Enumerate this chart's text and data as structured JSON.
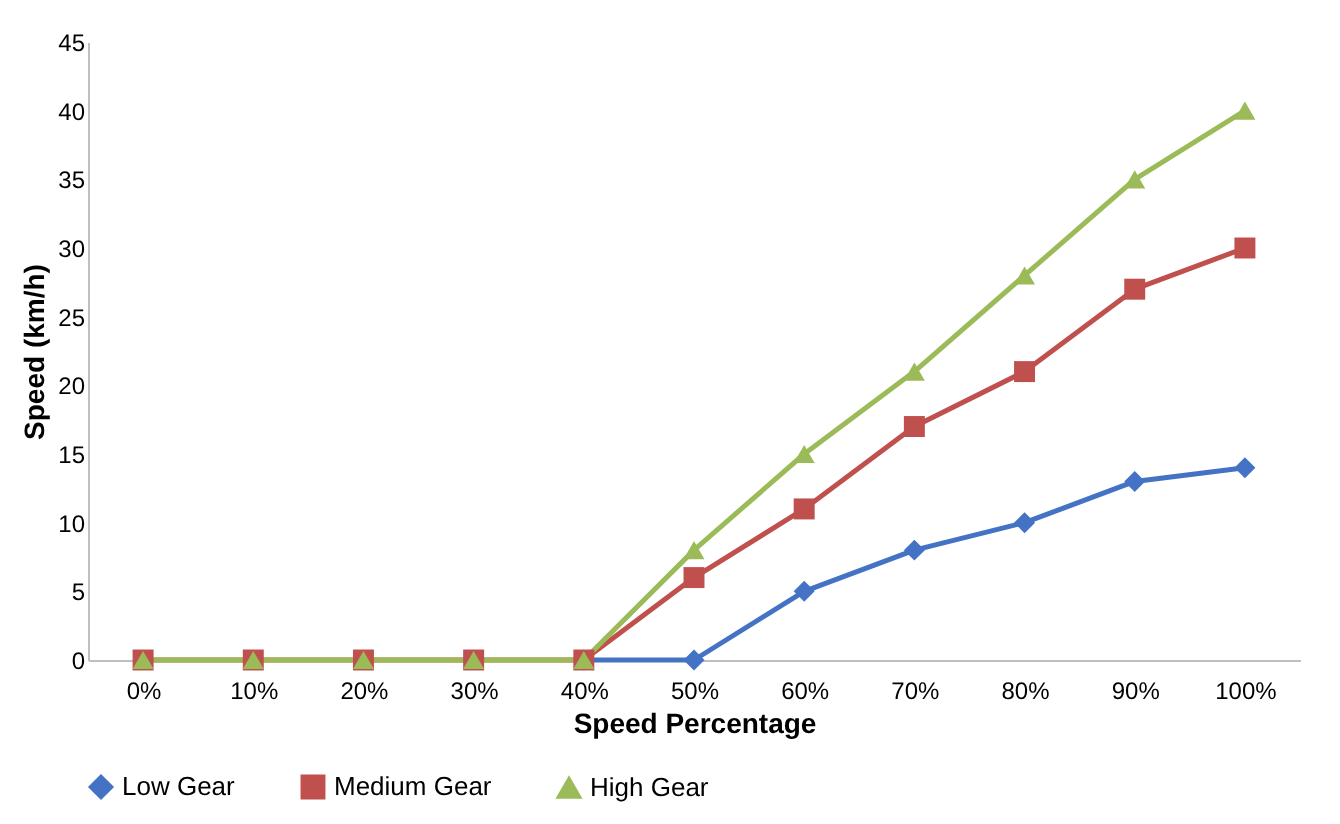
{
  "chart_data": {
    "type": "line",
    "xlabel": "Speed Percentage",
    "ylabel": "Speed (km/h)",
    "categories": [
      "0%",
      "10%",
      "20%",
      "30%",
      "40%",
      "50%",
      "60%",
      "70%",
      "80%",
      "90%",
      "100%"
    ],
    "series": [
      {
        "name": "Low Gear",
        "color": "#4472c4",
        "marker": "diamond",
        "values": [
          null,
          null,
          null,
          null,
          0,
          0,
          5,
          8,
          10,
          13,
          14
        ]
      },
      {
        "name": "Medium Gear",
        "color": "#c0504d",
        "marker": "square",
        "values": [
          0,
          0,
          0,
          0,
          0,
          6,
          11,
          17,
          21,
          27,
          30
        ]
      },
      {
        "name": "High Gear",
        "color": "#9bbb59",
        "marker": "triangle",
        "values": [
          0,
          0,
          0,
          0,
          0,
          8,
          15,
          21,
          28,
          35,
          40
        ]
      }
    ],
    "ylim": [
      0,
      45
    ],
    "yticks": [
      0,
      5,
      10,
      15,
      20,
      25,
      30,
      35,
      40,
      45
    ],
    "grid": false,
    "legend": "bottom",
    "line_style": "solid"
  }
}
